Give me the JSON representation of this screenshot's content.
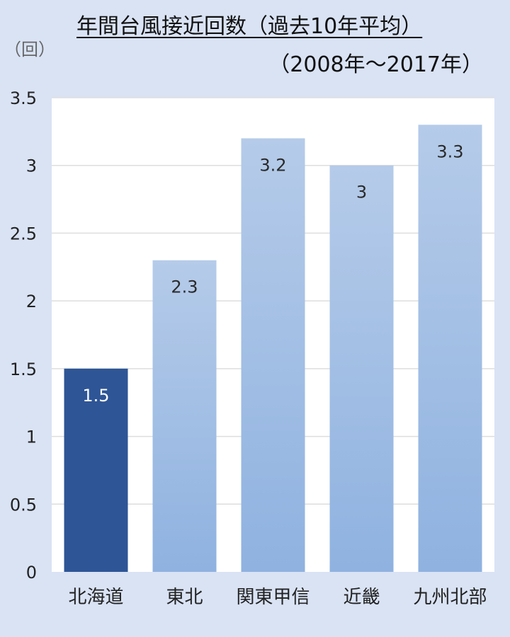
{
  "chart_data": {
    "type": "bar",
    "title": "年間台風接近回数（過去10年平均）",
    "subtitle": "（2008年〜2017年）",
    "ylabel": "（回）",
    "xlabel": "",
    "categories": [
      "北海道",
      "東北",
      "関東甲信",
      "近畿",
      "九州北部"
    ],
    "values": [
      1.5,
      2.3,
      3.2,
      3,
      3.3
    ],
    "data_labels": [
      "1.5",
      "2.3",
      "3.2",
      "3",
      "3.3"
    ],
    "ylim": [
      0,
      3.5
    ],
    "yticks": [
      "0",
      "0.5",
      "1",
      "1.5",
      "2",
      "2.5",
      "3",
      "3.5"
    ],
    "grid": true,
    "highlight_index": 0,
    "colors": {
      "background": "#d9e3f4",
      "plot_background": "#ffffff",
      "highlight_bar": "#2e5596",
      "bar_top": "#b5cbe9",
      "bar_bottom": "#8fb2e0",
      "gridline": "#dedede"
    }
  }
}
